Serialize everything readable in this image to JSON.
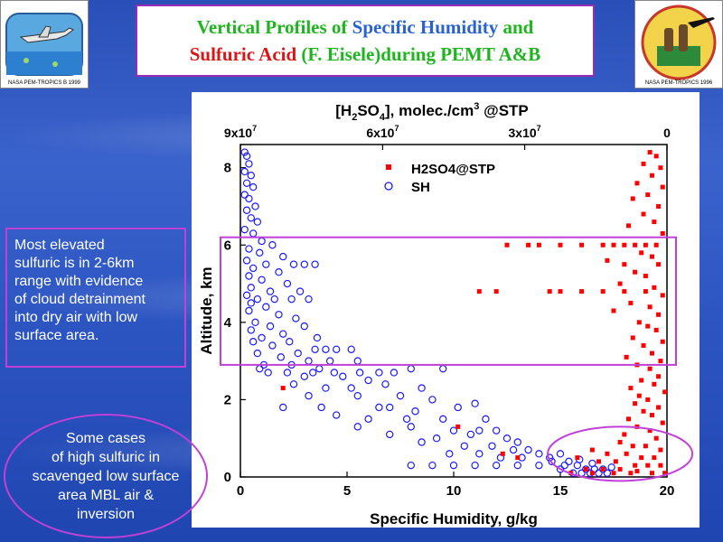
{
  "title": {
    "line1_part1": "Vertical Profiles of ",
    "line1_part2": "Specific Humidity",
    "line1_part3": " and",
    "line2_part1": "Sulfuric Acid",
    "line2_part2": " (F. Eisele)during PEMT A&B"
  },
  "colors": {
    "title_green": "#1fb51f",
    "title_blue": "#2a63d0",
    "title_red": "#d81818",
    "h2so4": "#ff0000",
    "sh": "#1a1aff",
    "highlight": "#c040d8"
  },
  "logos": {
    "left_text": "NASA PEM-TROPICS B 1999",
    "right_text": "NASA PEM-TROPICS 1996"
  },
  "notes": {
    "note1": [
      "Most elevated",
      "sulfuric is in 2-6km",
      "range with evidence",
      "of cloud detrainment",
      "into dry air with low",
      "surface area."
    ],
    "note2": [
      "Some cases",
      "of high sulfuric in",
      "scavenged low surface",
      "area MBL air &",
      "inversion"
    ]
  },
  "chart_data": {
    "type": "scatter",
    "top_axis": {
      "label_main": "[H",
      "label_sub1": "2",
      "label_mid": "SO",
      "label_sub2": "4",
      "label_rest": "],  molec./cm",
      "label_sup": "3",
      "label_end": " @STP",
      "ticks": [
        "9x10",
        "6x10",
        "3x10",
        "0"
      ],
      "tick_values_sh_units": [
        0,
        6.67,
        13.33,
        20
      ]
    },
    "tick_exponent": "7",
    "xlabel": "Specific Humidity, g/kg",
    "ylabel": "Altitude, km",
    "xlim": [
      0,
      20
    ],
    "ylim": [
      0,
      8.6
    ],
    "xticks": [
      0,
      5,
      10,
      15,
      20
    ],
    "yticks": [
      0,
      2,
      4,
      6,
      8
    ],
    "xtick_labels": [
      "0",
      "5",
      "10",
      "15",
      "20"
    ],
    "ytick_labels": [
      "0",
      "2",
      "4",
      "6",
      "8"
    ],
    "legend": [
      "H2SO4@STP",
      "SH"
    ],
    "highlight_box_km": [
      2.9,
      6.2
    ],
    "highlight_ellipse_center": [
      17.8,
      0.6
    ],
    "series": [
      {
        "name": "SH",
        "marker": "open-circle",
        "points": [
          [
            0.2,
            8.4
          ],
          [
            0.3,
            8.3
          ],
          [
            0.4,
            8.1
          ],
          [
            0.2,
            7.9
          ],
          [
            0.5,
            7.8
          ],
          [
            0.3,
            7.6
          ],
          [
            0.6,
            7.5
          ],
          [
            0.2,
            7.3
          ],
          [
            0.4,
            7.2
          ],
          [
            0.7,
            7.0
          ],
          [
            0.3,
            6.9
          ],
          [
            0.5,
            6.7
          ],
          [
            0.8,
            6.6
          ],
          [
            0.2,
            6.4
          ],
          [
            0.6,
            6.3
          ],
          [
            1.0,
            6.1
          ],
          [
            1.5,
            6.0
          ],
          [
            0.4,
            5.9
          ],
          [
            0.9,
            5.8
          ],
          [
            2.0,
            5.7
          ],
          [
            0.3,
            5.6
          ],
          [
            1.2,
            5.5
          ],
          [
            2.5,
            5.5
          ],
          [
            3.0,
            5.5
          ],
          [
            3.5,
            5.5
          ],
          [
            0.6,
            5.4
          ],
          [
            1.8,
            5.3
          ],
          [
            0.4,
            5.2
          ],
          [
            1.0,
            5.1
          ],
          [
            2.2,
            5.0
          ],
          [
            0.5,
            4.9
          ],
          [
            1.4,
            4.8
          ],
          [
            2.8,
            4.8
          ],
          [
            0.3,
            4.7
          ],
          [
            0.8,
            4.6
          ],
          [
            1.6,
            4.6
          ],
          [
            2.4,
            4.6
          ],
          [
            3.2,
            4.6
          ],
          [
            0.5,
            4.5
          ],
          [
            1.2,
            4.4
          ],
          [
            0.4,
            4.3
          ],
          [
            1.8,
            4.2
          ],
          [
            2.6,
            4.1
          ],
          [
            0.7,
            4.0
          ],
          [
            1.4,
            3.9
          ],
          [
            3.0,
            3.9
          ],
          [
            0.5,
            3.8
          ],
          [
            2.0,
            3.7
          ],
          [
            1.0,
            3.6
          ],
          [
            3.6,
            3.6
          ],
          [
            0.6,
            3.5
          ],
          [
            2.3,
            3.5
          ],
          [
            1.5,
            3.4
          ],
          [
            3.5,
            3.3
          ],
          [
            4.0,
            3.3
          ],
          [
            4.5,
            3.3
          ],
          [
            5.2,
            3.3
          ],
          [
            0.8,
            3.2
          ],
          [
            2.7,
            3.2
          ],
          [
            1.9,
            3.1
          ],
          [
            3.2,
            3.0
          ],
          [
            4.2,
            3.0
          ],
          [
            5.5,
            3.0
          ],
          [
            1.1,
            2.9
          ],
          [
            2.4,
            2.9
          ],
          [
            3.7,
            2.8
          ],
          [
            0.9,
            2.8
          ],
          [
            1.3,
            2.7
          ],
          [
            2.2,
            2.7
          ],
          [
            3.4,
            2.7
          ],
          [
            4.4,
            2.7
          ],
          [
            5.6,
            2.7
          ],
          [
            6.5,
            2.7
          ],
          [
            7.2,
            2.7
          ],
          [
            8.0,
            2.8
          ],
          [
            9.5,
            2.8
          ],
          [
            3.0,
            2.6
          ],
          [
            4.8,
            2.6
          ],
          [
            6.0,
            2.5
          ],
          [
            2.5,
            2.4
          ],
          [
            4.0,
            2.3
          ],
          [
            5.2,
            2.3
          ],
          [
            6.8,
            2.4
          ],
          [
            8.5,
            2.3
          ],
          [
            3.2,
            2.1
          ],
          [
            5.5,
            2.1
          ],
          [
            7.5,
            2.1
          ],
          [
            9.0,
            2.0
          ],
          [
            2.0,
            1.8
          ],
          [
            3.8,
            1.8
          ],
          [
            6.5,
            1.8
          ],
          [
            7.0,
            1.8
          ],
          [
            8.2,
            1.7
          ],
          [
            10.2,
            1.8
          ],
          [
            11.0,
            1.9
          ],
          [
            4.5,
            1.6
          ],
          [
            6.0,
            1.5
          ],
          [
            7.8,
            1.5
          ],
          [
            9.5,
            1.5
          ],
          [
            11.5,
            1.5
          ],
          [
            5.5,
            1.3
          ],
          [
            8.0,
            1.3
          ],
          [
            10.0,
            1.2
          ],
          [
            11.2,
            1.2
          ],
          [
            12.0,
            1.2
          ],
          [
            7.0,
            1.1
          ],
          [
            9.2,
            1.0
          ],
          [
            10.8,
            1.1
          ],
          [
            12.5,
            1.0
          ],
          [
            13.0,
            0.9
          ],
          [
            8.5,
            0.9
          ],
          [
            10.5,
            0.8
          ],
          [
            11.8,
            0.8
          ],
          [
            12.8,
            0.7
          ],
          [
            13.5,
            0.7
          ],
          [
            14.0,
            0.6
          ],
          [
            9.8,
            0.6
          ],
          [
            11.2,
            0.6
          ],
          [
            12.2,
            0.5
          ],
          [
            13.2,
            0.5
          ],
          [
            14.5,
            0.5
          ],
          [
            15.0,
            0.6
          ],
          [
            15.4,
            0.4
          ],
          [
            8.0,
            0.3
          ],
          [
            9.0,
            0.3
          ],
          [
            10.0,
            0.3
          ],
          [
            11.0,
            0.3
          ],
          [
            12.0,
            0.3
          ],
          [
            13.0,
            0.3
          ],
          [
            14.0,
            0.3
          ],
          [
            15.2,
            0.3
          ],
          [
            15.8,
            0.3
          ],
          [
            16.2,
            0.2
          ],
          [
            16.6,
            0.2
          ],
          [
            17.0,
            0.2
          ],
          [
            15.6,
            0.1
          ],
          [
            16.0,
            0.1
          ],
          [
            16.4,
            0.1
          ],
          [
            16.8,
            0.1
          ],
          [
            17.2,
            0.1
          ],
          [
            15.0,
            0.2
          ],
          [
            14.6,
            0.4
          ],
          [
            16.5,
            0.35
          ],
          [
            17.4,
            0.25
          ],
          [
            15.9,
            0.45
          ]
        ]
      },
      {
        "name": "H2SO4@STP",
        "marker": "filled-square",
        "points": [
          [
            19.2,
            8.4
          ],
          [
            19.5,
            8.3
          ],
          [
            18.9,
            8.1
          ],
          [
            19.7,
            8.0
          ],
          [
            19.3,
            7.8
          ],
          [
            18.6,
            7.6
          ],
          [
            19.8,
            7.5
          ],
          [
            19.1,
            7.3
          ],
          [
            18.4,
            7.2
          ],
          [
            19.6,
            7.0
          ],
          [
            18.9,
            6.8
          ],
          [
            19.4,
            6.6
          ],
          [
            18.2,
            6.5
          ],
          [
            19.8,
            6.3
          ],
          [
            14.0,
            6.0
          ],
          [
            15.0,
            6.0
          ],
          [
            16.0,
            6.0
          ],
          [
            17.0,
            6.0
          ],
          [
            17.5,
            6.0
          ],
          [
            18.0,
            6.0
          ],
          [
            18.5,
            6.0
          ],
          [
            19.0,
            6.0
          ],
          [
            19.5,
            6.0
          ],
          [
            13.5,
            6.0
          ],
          [
            12.5,
            6.0
          ],
          [
            18.8,
            5.8
          ],
          [
            19.3,
            5.7
          ],
          [
            17.2,
            5.6
          ],
          [
            18.0,
            5.5
          ],
          [
            19.6,
            5.5
          ],
          [
            18.5,
            5.3
          ],
          [
            19.0,
            5.2
          ],
          [
            17.8,
            5.0
          ],
          [
            19.4,
            4.9
          ],
          [
            11.2,
            4.8
          ],
          [
            12.0,
            4.8
          ],
          [
            14.5,
            4.8
          ],
          [
            15.0,
            4.8
          ],
          [
            16.0,
            4.8
          ],
          [
            17.0,
            4.8
          ],
          [
            18.0,
            4.8
          ],
          [
            19.0,
            4.8
          ],
          [
            19.8,
            4.7
          ],
          [
            18.3,
            4.5
          ],
          [
            19.2,
            4.4
          ],
          [
            17.5,
            4.3
          ],
          [
            19.6,
            4.2
          ],
          [
            18.7,
            4.0
          ],
          [
            19.1,
            3.9
          ],
          [
            19.5,
            3.8
          ],
          [
            18.4,
            3.6
          ],
          [
            19.8,
            3.5
          ],
          [
            18.9,
            3.4
          ],
          [
            19.3,
            3.2
          ],
          [
            18.1,
            3.1
          ],
          [
            19.7,
            3.0
          ],
          [
            18.6,
            2.9
          ],
          [
            19.2,
            2.8
          ],
          [
            19.6,
            2.6
          ],
          [
            18.8,
            2.5
          ],
          [
            19.4,
            2.4
          ],
          [
            18.3,
            2.3
          ],
          [
            2.0,
            2.3
          ],
          [
            19.9,
            2.2
          ],
          [
            18.7,
            2.1
          ],
          [
            19.1,
            2.0
          ],
          [
            18.5,
            1.9
          ],
          [
            19.6,
            1.8
          ],
          [
            18.9,
            1.7
          ],
          [
            19.3,
            1.6
          ],
          [
            18.2,
            1.5
          ],
          [
            19.8,
            1.4
          ],
          [
            18.6,
            1.3
          ],
          [
            19.2,
            1.2
          ],
          [
            18.0,
            1.1
          ],
          [
            19.5,
            1.0
          ],
          [
            17.8,
            0.9
          ],
          [
            18.4,
            0.8
          ],
          [
            19.0,
            0.8
          ],
          [
            19.7,
            0.7
          ],
          [
            16.5,
            0.7
          ],
          [
            17.2,
            0.6
          ],
          [
            18.1,
            0.6
          ],
          [
            18.8,
            0.5
          ],
          [
            19.4,
            0.5
          ],
          [
            15.8,
            0.5
          ],
          [
            16.8,
            0.4
          ],
          [
            17.6,
            0.4
          ],
          [
            18.5,
            0.3
          ],
          [
            19.1,
            0.3
          ],
          [
            19.7,
            0.3
          ],
          [
            16.2,
            0.2
          ],
          [
            17.0,
            0.2
          ],
          [
            17.8,
            0.2
          ],
          [
            18.6,
            0.15
          ],
          [
            19.3,
            0.1
          ],
          [
            19.9,
            0.1
          ],
          [
            15.5,
            0.1
          ],
          [
            16.5,
            0.1
          ],
          [
            17.5,
            0.1
          ],
          [
            18.3,
            0.1
          ],
          [
            12.3,
            0.6
          ],
          [
            13.0,
            0.5
          ],
          [
            10.2,
            1.3
          ]
        ]
      }
    ]
  }
}
